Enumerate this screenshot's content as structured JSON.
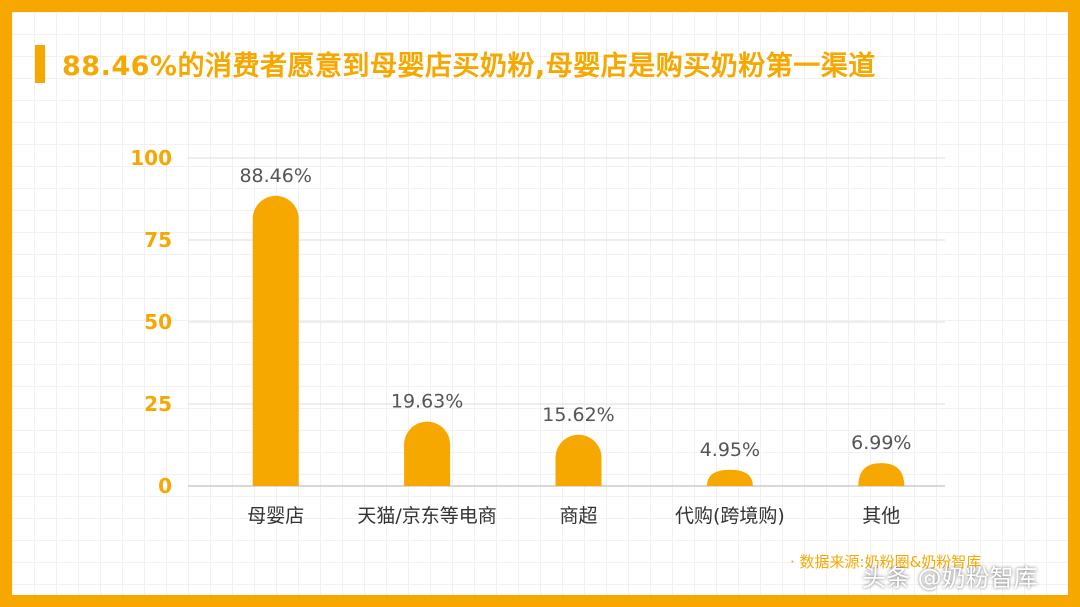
{
  "title": "88.46%的消费者愿意到母婴店买奶粉,母婴店是购买奶粉第一渠道",
  "source": "· 数据来源:奶粉圈&奶粉智库",
  "watermark": "头条 @奶粉智库",
  "colors": {
    "accent": "#F6A800",
    "grid": "#dddddd",
    "axis": "#cccccc",
    "text": "#333333"
  },
  "chart_data": {
    "type": "bar",
    "categories": [
      "母婴店",
      "天猫/京东等电商",
      "商超",
      "代购(跨境购)",
      "其他"
    ],
    "values": [
      88.46,
      19.63,
      15.62,
      4.95,
      6.99
    ],
    "value_labels": [
      "88.46%",
      "19.63%",
      "15.62%",
      "4.95%",
      "6.99%"
    ],
    "y_ticks": [
      0,
      25,
      50,
      75,
      100
    ],
    "ylim": [
      0,
      100
    ],
    "grid": true,
    "legend": false
  }
}
